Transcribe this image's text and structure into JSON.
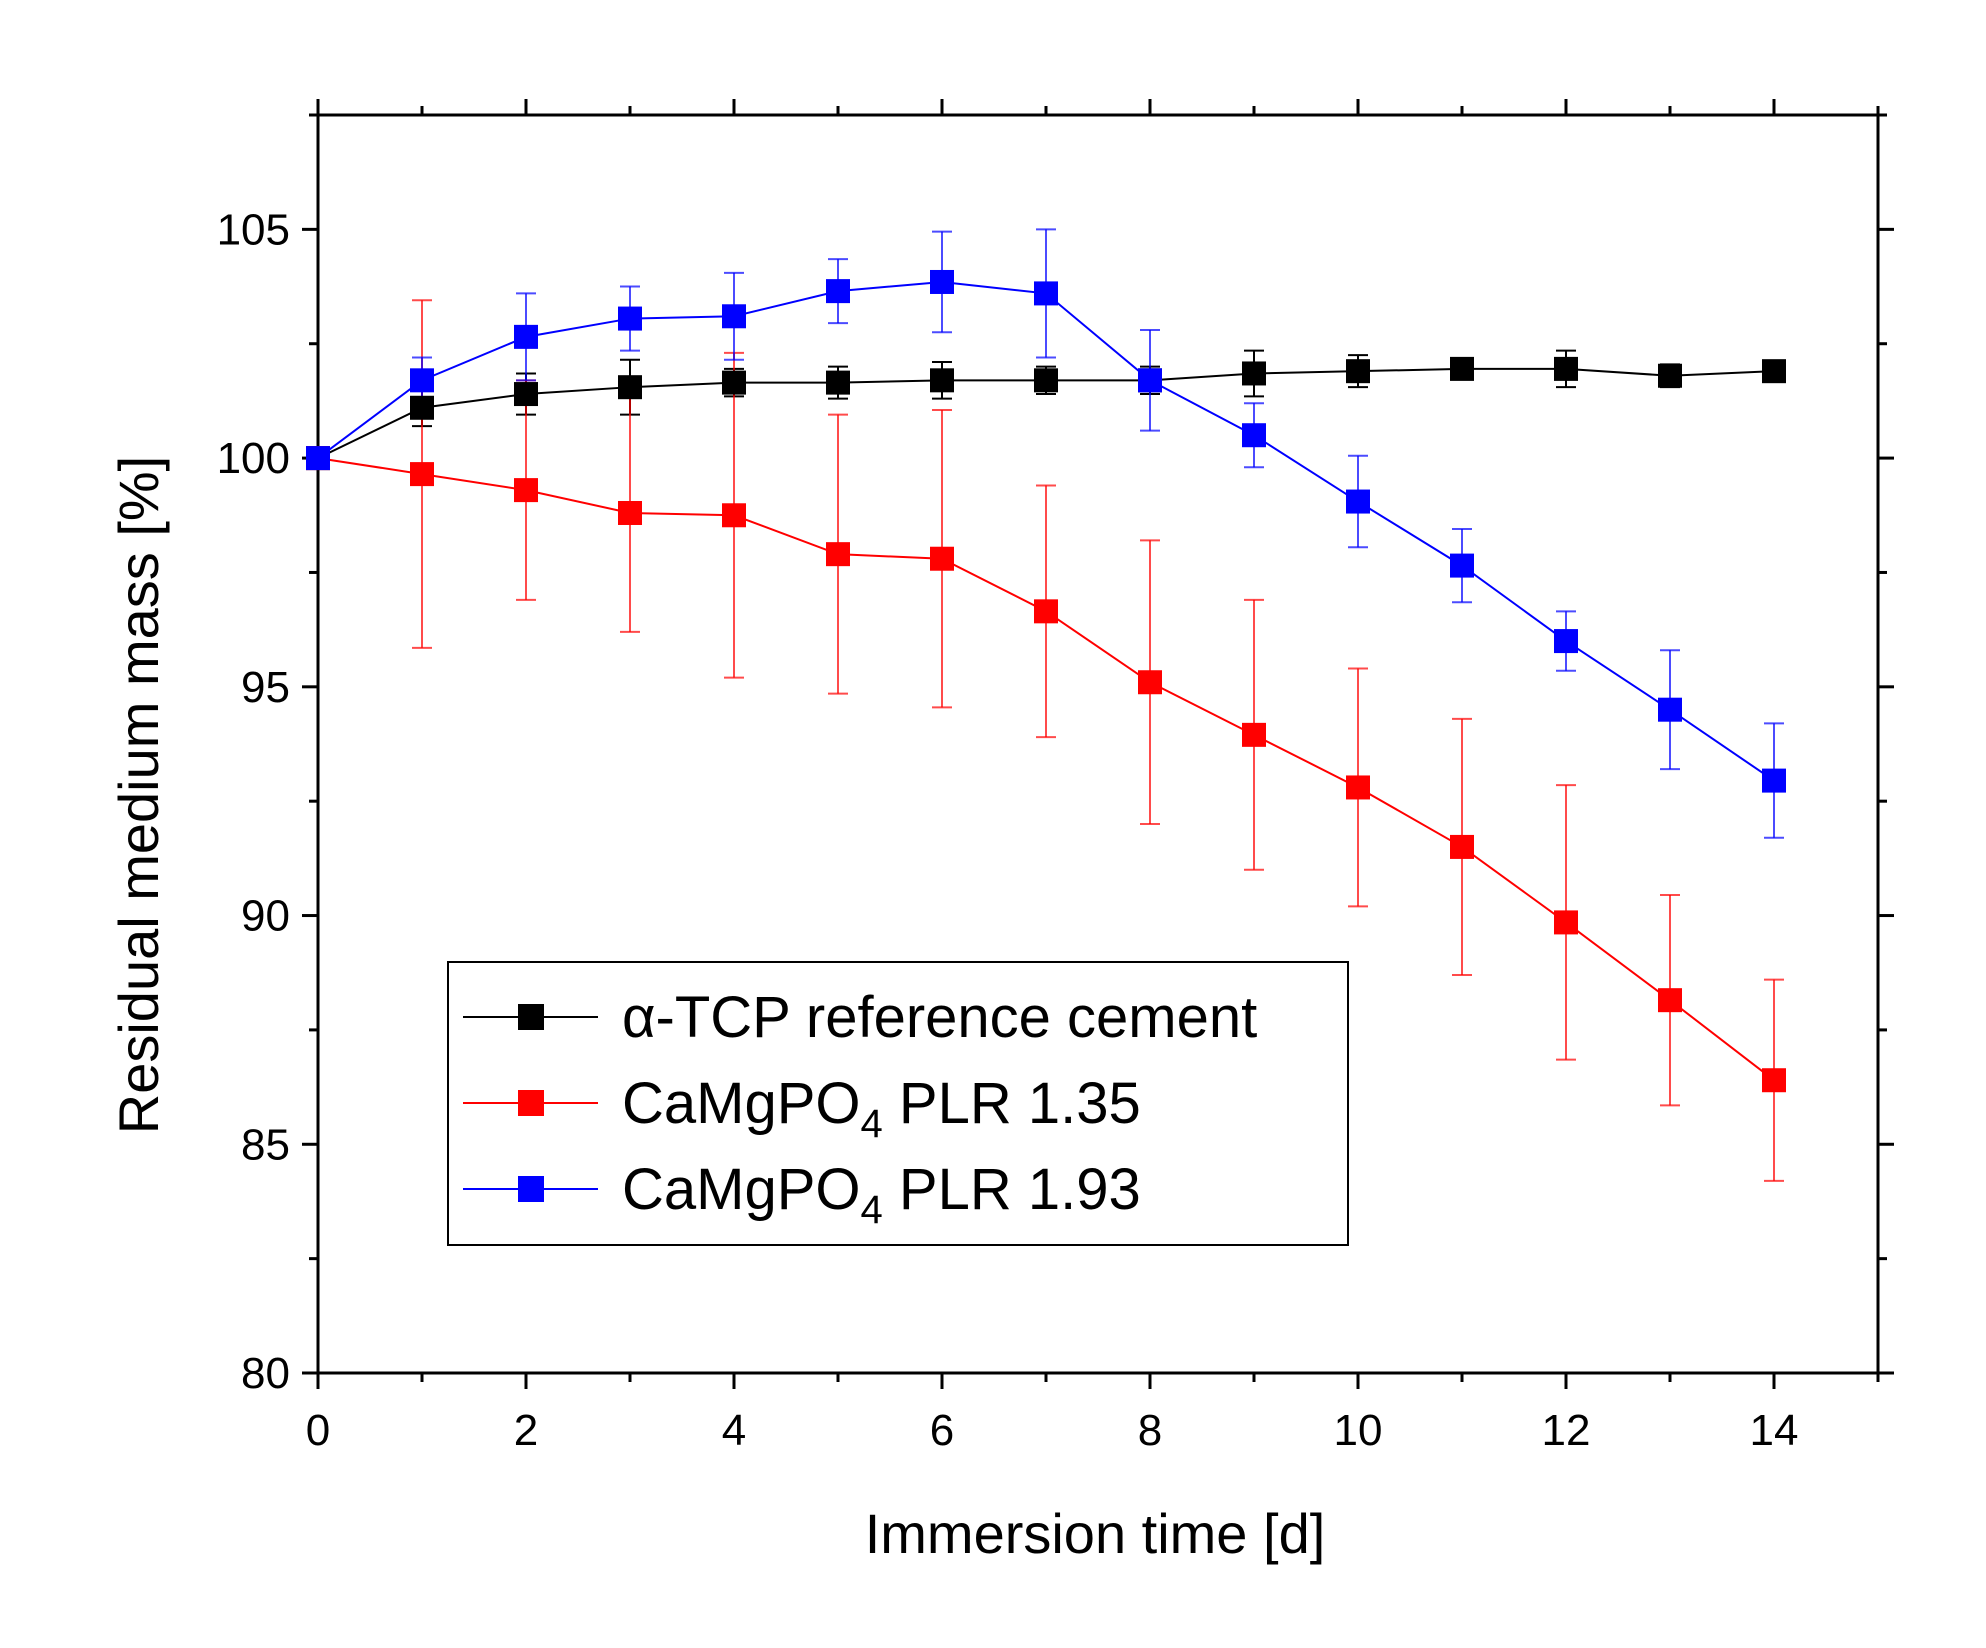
{
  "chart_data": {
    "type": "line",
    "title": "",
    "xlabel": "Immersion time [d]",
    "ylabel": "Residual medium mass [%]",
    "xlim": [
      0,
      15
    ],
    "ylim": [
      80,
      107.5
    ],
    "xticks": [
      0,
      2,
      4,
      6,
      8,
      10,
      12,
      14
    ],
    "yticks": [
      80,
      85,
      90,
      95,
      100,
      105
    ],
    "grid": false,
    "legend_position": "bottom-left",
    "x": [
      0,
      1,
      2,
      3,
      4,
      5,
      6,
      7,
      8,
      9,
      10,
      11,
      12,
      13,
      14
    ],
    "series": [
      {
        "name": "α-TCP reference cement",
        "legend": {
          "main": "α-TCP reference cement",
          "sub": "",
          "tail": ""
        },
        "color": "#000000",
        "values": [
          100,
          101.1,
          101.4,
          101.55,
          101.65,
          101.65,
          101.7,
          101.7,
          101.7,
          101.85,
          101.9,
          101.95,
          101.95,
          101.8,
          101.9
        ],
        "errors": [
          0,
          0.4,
          0.45,
          0.6,
          0.3,
          0.35,
          0.4,
          0.3,
          0.3,
          0.5,
          0.35,
          0.2,
          0.4,
          0.25,
          0.15
        ]
      },
      {
        "name": "CaMgPO4 PLR 1.35",
        "legend": {
          "main": "CaMgPO",
          "sub": "4",
          "tail": " PLR 1.35"
        },
        "color": "#ff0000",
        "values": [
          100,
          99.65,
          99.3,
          98.8,
          98.75,
          97.9,
          97.8,
          96.65,
          95.1,
          93.95,
          92.8,
          91.5,
          89.85,
          88.15,
          86.4
        ],
        "errors": [
          0,
          3.8,
          2.4,
          2.6,
          3.55,
          3.05,
          3.25,
          2.75,
          3.1,
          2.95,
          2.6,
          2.8,
          3.0,
          2.3,
          2.2
        ]
      },
      {
        "name": "CaMgPO4 PLR 1.93",
        "legend": {
          "main": "CaMgPO",
          "sub": "4",
          "tail": " PLR 1.93"
        },
        "color": "#0000ff",
        "values": [
          100,
          101.7,
          102.65,
          103.05,
          103.1,
          103.65,
          103.85,
          103.6,
          101.7,
          100.5,
          99.05,
          97.65,
          96.0,
          94.5,
          92.95
        ],
        "errors": [
          0,
          0.5,
          0.95,
          0.7,
          0.95,
          0.7,
          1.1,
          1.4,
          1.1,
          0.7,
          1.0,
          0.8,
          0.65,
          1.3,
          1.25
        ]
      }
    ]
  }
}
